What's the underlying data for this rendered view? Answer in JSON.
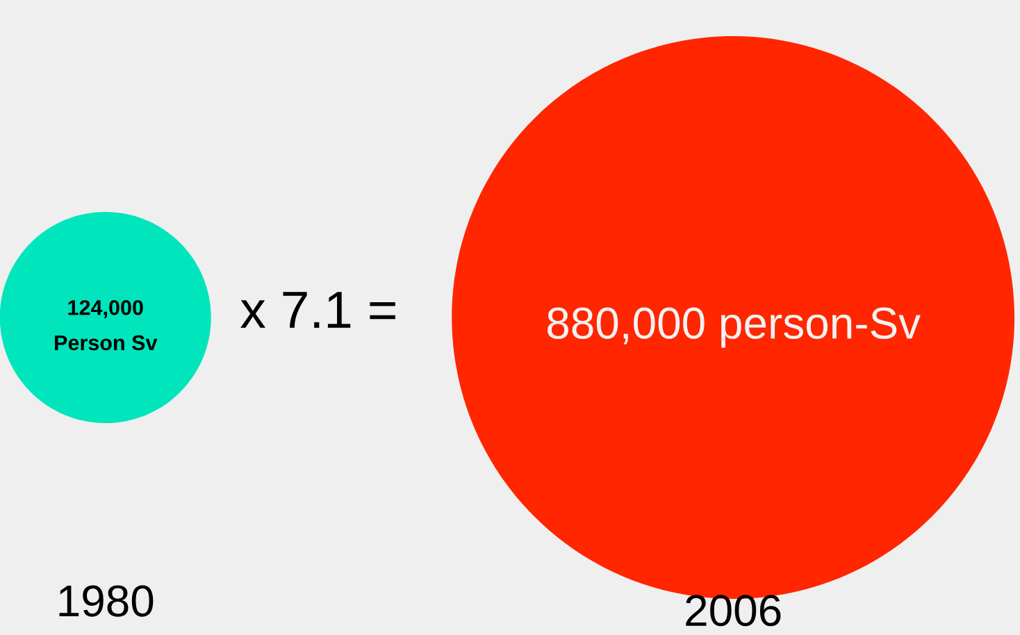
{
  "chart_data": {
    "type": "other",
    "categories": [
      "1980",
      "2006"
    ],
    "values": [
      124000,
      880000
    ],
    "colors": [
      "#00e5bb",
      "#ff2600"
    ],
    "value_labels": [
      "124,000\nPerson Sv",
      "880,000 person-Sv"
    ],
    "annotations": [
      "x 7.1 ="
    ]
  }
}
